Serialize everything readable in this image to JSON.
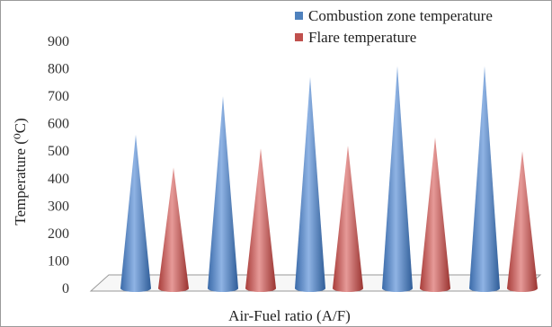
{
  "chart_data": {
    "type": "bar",
    "style": "3d-cone",
    "categories": [
      "",
      "",
      "",
      "",
      ""
    ],
    "series": [
      {
        "name": "Combustion zone temperature",
        "values": [
          560,
          700,
          770,
          810,
          810
        ],
        "color": "#4f81bd"
      },
      {
        "name": "Flare temperature",
        "values": [
          440,
          510,
          520,
          550,
          500
        ],
        "color": "#c0504d"
      }
    ],
    "title": "",
    "xlabel": "Air-Fuel ratio (A/F)",
    "ylabel": "Temperature (⁰C)",
    "ylim": [
      0,
      900
    ],
    "yticks": [
      0,
      100,
      200,
      300,
      400,
      500,
      600,
      700,
      800,
      900
    ],
    "grid": false,
    "legend": "top-right"
  }
}
